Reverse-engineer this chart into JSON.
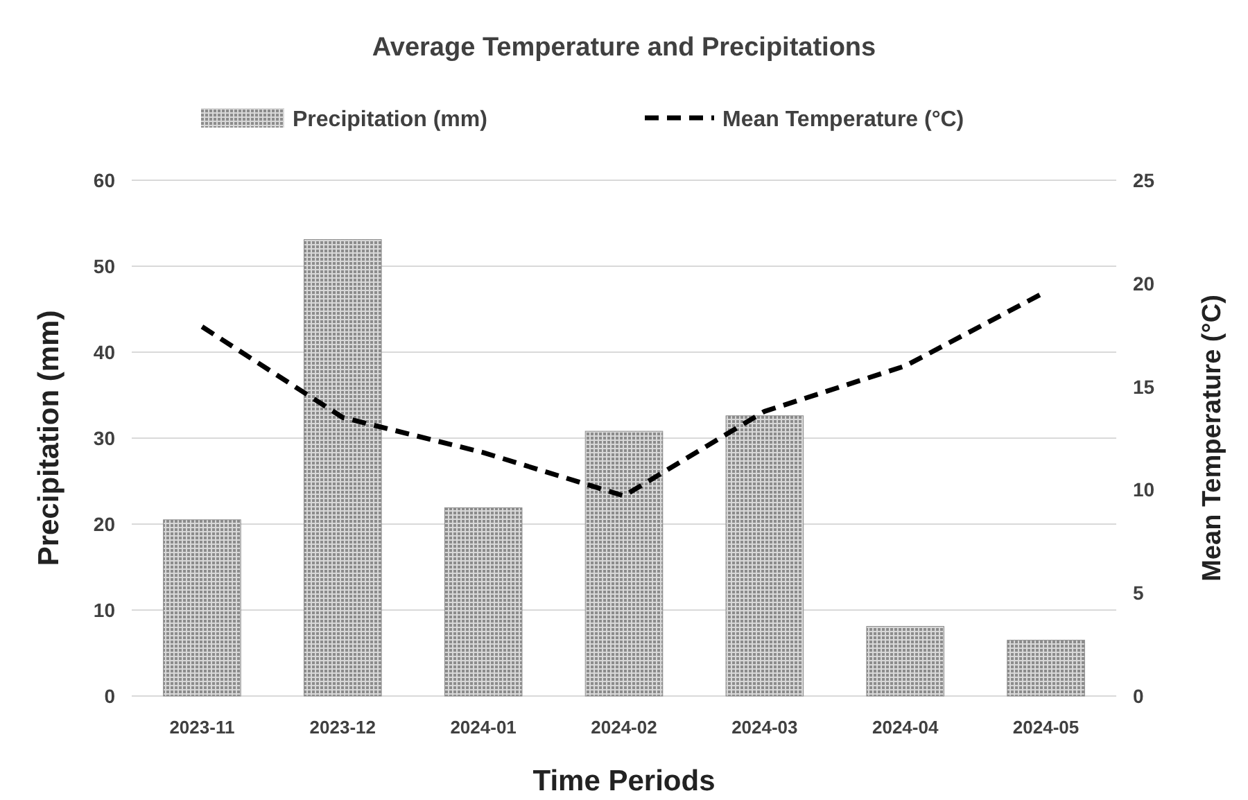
{
  "chart_data": {
    "type": "bar",
    "title": "Average Temperature and Precipitations",
    "xlabel": "Time Periods",
    "ylabel": "Precipitation (mm)",
    "y2label": "Mean Temperature (°C)",
    "categories": [
      "2023-11",
      "2023-12",
      "2024-01",
      "2024-02",
      "2024-03",
      "2024-04",
      "2024-05"
    ],
    "series": [
      {
        "name": "Precipitation (mm)",
        "color": "#8c8c8c",
        "values": [
          20.5,
          53.1,
          21.9,
          30.8,
          32.6,
          8.1,
          6.5
        ]
      },
      {
        "name": "Mean Temperature (°C)",
        "type": "line",
        "axis": "y2",
        "color": "#000000",
        "line_style": "dashed",
        "marker": "none",
        "values": [
          17.9,
          13.5,
          11.8,
          9.7,
          13.8,
          16.0,
          19.6
        ]
      }
    ],
    "ylim": [
      0,
      60
    ],
    "yticks": [
      0,
      10,
      20,
      30,
      40,
      50,
      60
    ],
    "y2lim": [
      0,
      25
    ],
    "y2ticks": [
      0,
      5,
      10,
      15,
      20,
      25
    ],
    "grid": "y",
    "legend": "top"
  }
}
